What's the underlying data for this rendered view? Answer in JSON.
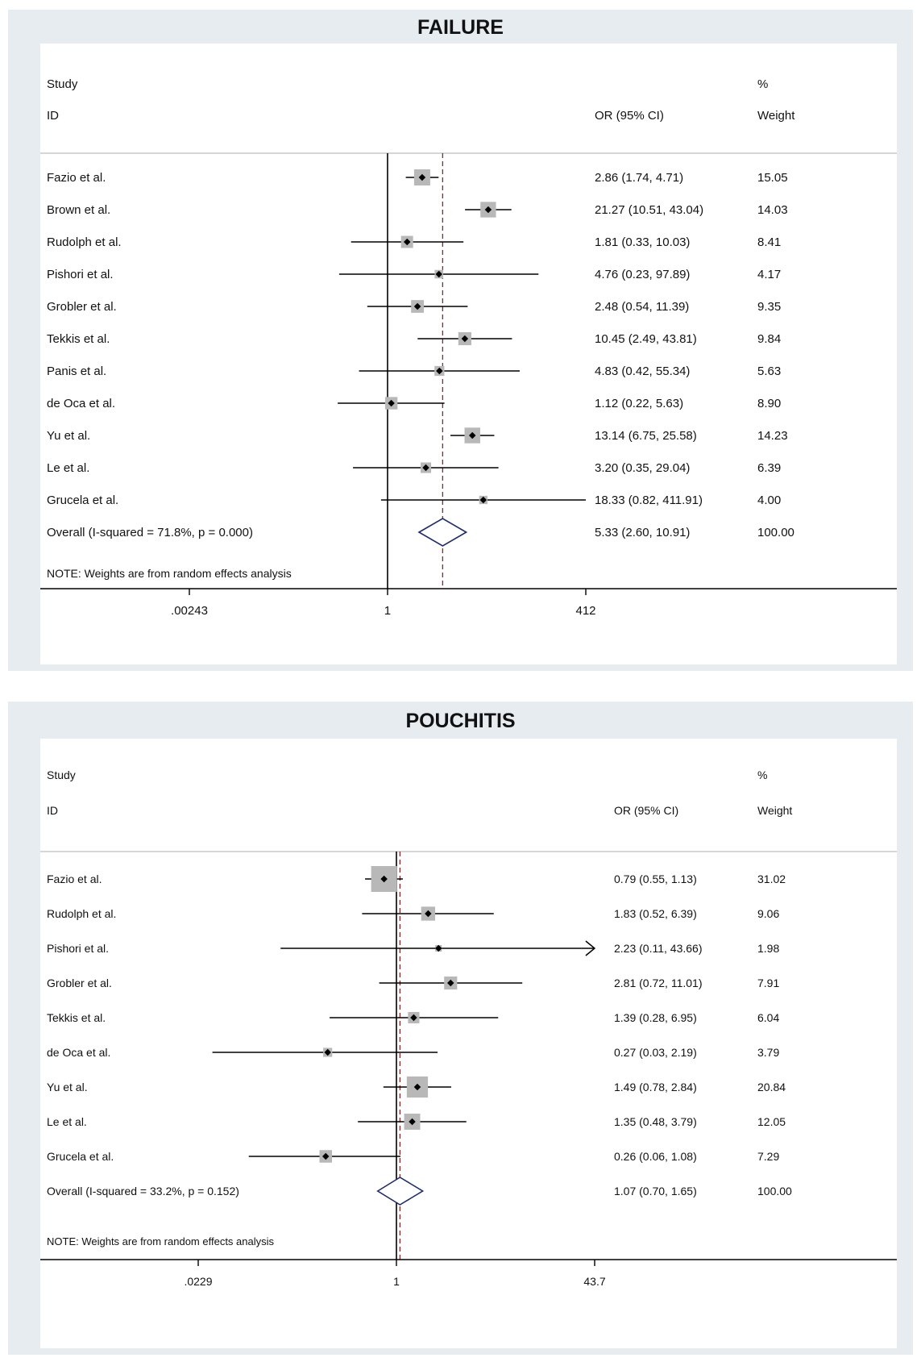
{
  "chart_data": [
    {
      "type": "forest",
      "title": "FAILURE",
      "header": {
        "study": "Study",
        "id": "ID",
        "or_ci": "OR (95% CI)",
        "pct": "%",
        "weight": "Weight"
      },
      "x_ticks": [
        ".00243",
        "1",
        "412"
      ],
      "x_range_log": [
        0.00243,
        412
      ],
      "studies": [
        {
          "name": "Fazio et al.",
          "or": 2.86,
          "lo": 1.74,
          "hi": 4.71,
          "label": "2.86 (1.74, 4.71)",
          "weight": "15.05"
        },
        {
          "name": "Brown et al.",
          "or": 21.27,
          "lo": 10.51,
          "hi": 43.04,
          "label": "21.27 (10.51, 43.04)",
          "weight": "14.03"
        },
        {
          "name": "Rudolph et al.",
          "or": 1.81,
          "lo": 0.33,
          "hi": 10.03,
          "label": "1.81 (0.33, 10.03)",
          "weight": "8.41"
        },
        {
          "name": "Pishori et al.",
          "or": 4.76,
          "lo": 0.23,
          "hi": 97.89,
          "label": "4.76 (0.23, 97.89)",
          "weight": "4.17"
        },
        {
          "name": "Grobler et al.",
          "or": 2.48,
          "lo": 0.54,
          "hi": 11.39,
          "label": "2.48 (0.54, 11.39)",
          "weight": "9.35"
        },
        {
          "name": "Tekkis et al.",
          "or": 10.45,
          "lo": 2.49,
          "hi": 43.81,
          "label": "10.45 (2.49, 43.81)",
          "weight": "9.84"
        },
        {
          "name": "Panis et al.",
          "or": 4.83,
          "lo": 0.42,
          "hi": 55.34,
          "label": "4.83 (0.42, 55.34)",
          "weight": "5.63"
        },
        {
          "name": "de Oca et al.",
          "or": 1.12,
          "lo": 0.22,
          "hi": 5.63,
          "label": "1.12 (0.22, 5.63)",
          "weight": "8.90"
        },
        {
          "name": "Yu et al.",
          "or": 13.14,
          "lo": 6.75,
          "hi": 25.58,
          "label": "13.14 (6.75, 25.58)",
          "weight": "14.23"
        },
        {
          "name": "Le et al.",
          "or": 3.2,
          "lo": 0.35,
          "hi": 29.04,
          "label": "3.20 (0.35, 29.04)",
          "weight": "6.39"
        },
        {
          "name": "Grucela et al.",
          "or": 18.33,
          "lo": 0.82,
          "hi": 411.91,
          "label": "18.33 (0.82, 411.91)",
          "weight": "4.00"
        }
      ],
      "overall": {
        "name": "Overall  (I-squared = 71.8%, p = 0.000)",
        "or": 5.33,
        "lo": 2.6,
        "hi": 10.91,
        "label": "5.33 (2.60, 10.91)",
        "weight": "100.00"
      },
      "note": "NOTE: Weights are from random effects analysis"
    },
    {
      "type": "forest",
      "title": "POUCHITIS",
      "header": {
        "study": "Study",
        "id": "ID",
        "or_ci": "OR (95% CI)",
        "pct": "%",
        "weight": "Weight"
      },
      "x_ticks": [
        ".0229",
        "1",
        "43.7"
      ],
      "x_range_log": [
        0.0229,
        43.7
      ],
      "studies": [
        {
          "name": "Fazio et al.",
          "or": 0.79,
          "lo": 0.55,
          "hi": 1.13,
          "label": "0.79 (0.55, 1.13)",
          "weight": "31.02"
        },
        {
          "name": "Rudolph et al.",
          "or": 1.83,
          "lo": 0.52,
          "hi": 6.39,
          "label": "1.83 (0.52, 6.39)",
          "weight": "9.06"
        },
        {
          "name": "Pishori et al.",
          "or": 2.23,
          "lo": 0.11,
          "hi": 43.66,
          "label": "2.23 (0.11, 43.66)",
          "weight": "1.98",
          "arrow": true
        },
        {
          "name": "Grobler et al.",
          "or": 2.81,
          "lo": 0.72,
          "hi": 11.01,
          "label": "2.81 (0.72, 11.01)",
          "weight": "7.91"
        },
        {
          "name": "Tekkis et al.",
          "or": 1.39,
          "lo": 0.28,
          "hi": 6.95,
          "label": "1.39 (0.28, 6.95)",
          "weight": "6.04"
        },
        {
          "name": "de Oca et al.",
          "or": 0.27,
          "lo": 0.03,
          "hi": 2.19,
          "label": "0.27 (0.03, 2.19)",
          "weight": "3.79"
        },
        {
          "name": "Yu et al.",
          "or": 1.49,
          "lo": 0.78,
          "hi": 2.84,
          "label": "1.49 (0.78, 2.84)",
          "weight": "20.84"
        },
        {
          "name": "Le et al.",
          "or": 1.35,
          "lo": 0.48,
          "hi": 3.79,
          "label": "1.35 (0.48, 3.79)",
          "weight": "12.05"
        },
        {
          "name": "Grucela et al.",
          "or": 0.26,
          "lo": 0.06,
          "hi": 1.08,
          "label": "0.26 (0.06, 1.08)",
          "weight": "7.29"
        }
      ],
      "overall": {
        "name": "Overall  (I-squared = 33.2%, p = 0.152)",
        "or": 1.07,
        "lo": 0.7,
        "hi": 1.65,
        "label": "1.07 (0.70, 1.65)",
        "weight": "100.00"
      },
      "note": "NOTE: Weights are from random effects analysis"
    }
  ],
  "colors": {
    "panel_bg": "#e7ecf1",
    "square": "#b8b8b8",
    "line": "#000000",
    "diamond": "#1f2a6b",
    "overall_line": "#8b2a2a"
  }
}
